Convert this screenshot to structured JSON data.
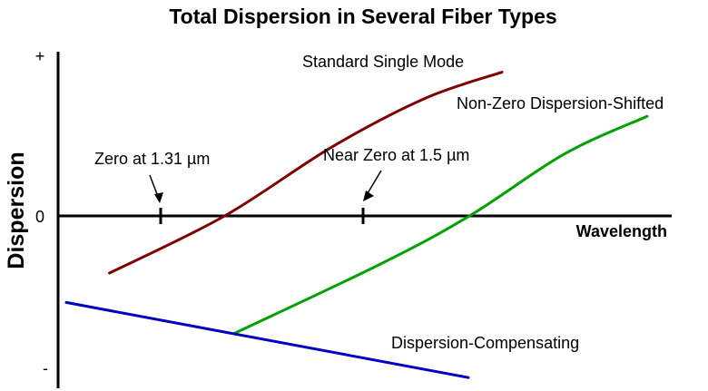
{
  "chart_data": {
    "type": "line",
    "title": "Total Dispersion in Several Fiber Types",
    "xlabel": "Wavelength",
    "ylabel": "Dispersion",
    "y_ticks": {
      "plus": "+",
      "zero": "0",
      "minus": "-"
    },
    "series": [
      {
        "name": "Standard Single Mode",
        "color": "#800000",
        "points": [
          [
            0.08,
            -0.35
          ],
          [
            0.35,
            0.0
          ],
          [
            0.6,
            0.42
          ],
          [
            0.82,
            0.72
          ],
          [
            1.0,
            0.88
          ]
        ]
      },
      {
        "name": "Non-Zero Dispersion-Shifted",
        "color": "#00A000",
        "points": [
          [
            0.0,
            -0.72
          ],
          [
            0.35,
            -0.3
          ],
          [
            0.57,
            0.0
          ],
          [
            0.8,
            0.38
          ],
          [
            1.0,
            0.61
          ]
        ]
      },
      {
        "name": "Dispersion-Compensating",
        "color": "#0000C0",
        "points": [
          [
            0.0,
            -0.53
          ],
          [
            1.0,
            -0.99
          ]
        ]
      }
    ],
    "annotations": [
      {
        "text": "Zero at 1.31 µm"
      },
      {
        "text": "Near Zero at 1.5 µm"
      }
    ],
    "grid": false,
    "legend": "none"
  }
}
